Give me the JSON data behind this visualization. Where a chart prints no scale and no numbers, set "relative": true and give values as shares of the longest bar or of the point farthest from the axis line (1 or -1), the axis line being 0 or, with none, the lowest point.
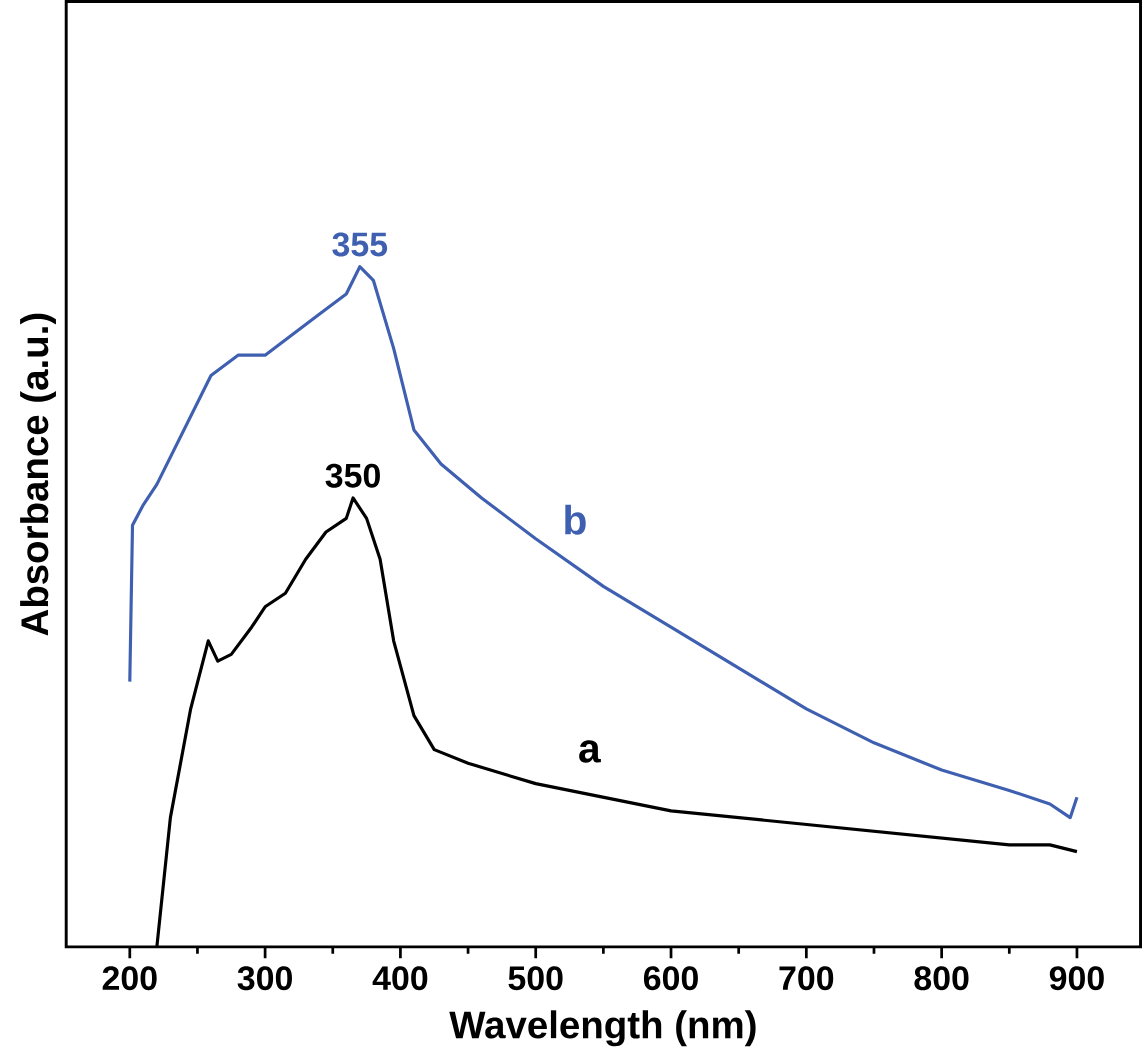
{
  "chart_data": {
    "type": "line",
    "xlabel": "Wavelength (nm)",
    "ylabel": "Absorbance (a.u.)",
    "relative": true,
    "tick_labels": "x",
    "xlim": [
      153,
      947
    ],
    "xticks": [
      200,
      300,
      400,
      500,
      600,
      700,
      800,
      900
    ],
    "series": [
      {
        "name": "a",
        "color": "#000000",
        "x": [
          220,
          230,
          245,
          258,
          265,
          275,
          290,
          300,
          315,
          330,
          345,
          360,
          365,
          375,
          385,
          395,
          410,
          425,
          450,
          500,
          550,
          600,
          700,
          800,
          850,
          880,
          900
        ],
        "values": [
          0.0,
          0.19,
          0.35,
          0.45,
          0.42,
          0.43,
          0.47,
          0.5,
          0.52,
          0.57,
          0.61,
          0.63,
          0.66,
          0.63,
          0.57,
          0.45,
          0.34,
          0.29,
          0.27,
          0.24,
          0.22,
          0.2,
          0.18,
          0.16,
          0.15,
          0.15,
          0.14
        ]
      },
      {
        "name": "b",
        "color": "#3f5fb0",
        "x": [
          200,
          202,
          210,
          220,
          240,
          260,
          280,
          300,
          320,
          340,
          360,
          370,
          380,
          395,
          410,
          430,
          460,
          500,
          550,
          600,
          650,
          700,
          750,
          800,
          850,
          880,
          895,
          900
        ],
        "values": [
          0.39,
          0.62,
          0.65,
          0.68,
          0.76,
          0.84,
          0.87,
          0.87,
          0.9,
          0.93,
          0.96,
          1.0,
          0.98,
          0.88,
          0.76,
          0.71,
          0.66,
          0.6,
          0.53,
          0.47,
          0.41,
          0.35,
          0.3,
          0.26,
          0.23,
          0.21,
          0.19,
          0.22
        ]
      }
    ],
    "annotations": [
      {
        "text": "350",
        "x": 365,
        "y": 0.66
      },
      {
        "text": "355",
        "x": 370,
        "y": 1.0
      }
    ]
  }
}
